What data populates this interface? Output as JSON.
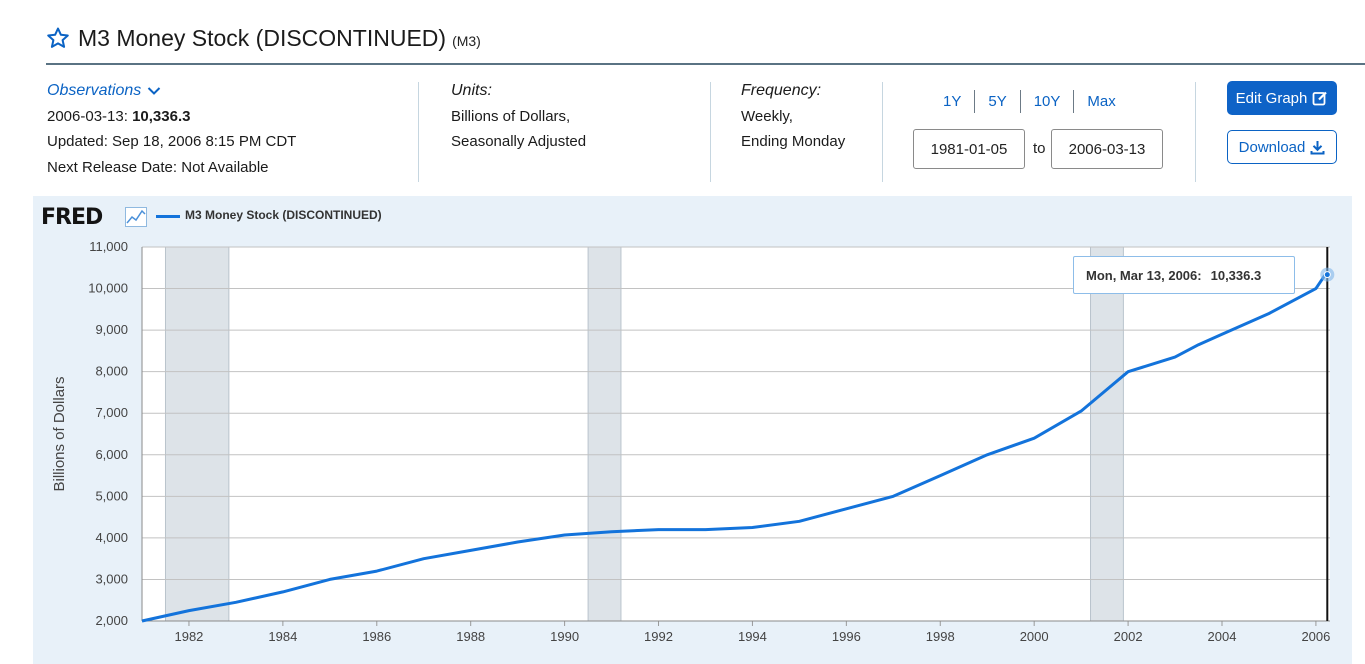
{
  "header": {
    "title": "M3 Money Stock (DISCONTINUED)",
    "series_id": "(M3)"
  },
  "observations": {
    "label": "Observations",
    "date": "2006-03-13:",
    "value": "10,336.3",
    "updated": "Updated: Sep 18, 2006 8:15 PM CDT",
    "next_release": "Next Release Date: Not Available"
  },
  "units": {
    "label": "Units:",
    "line1": "Billions of Dollars,",
    "line2": "Seasonally Adjusted"
  },
  "frequency": {
    "label": "Frequency:",
    "line1": "Weekly,",
    "line2": "Ending Monday"
  },
  "range": {
    "buttons": [
      "1Y",
      "5Y",
      "10Y",
      "Max"
    ],
    "start": "1981-01-05",
    "to_label": "to",
    "end": "2006-03-13"
  },
  "actions": {
    "edit_label": "Edit Graph",
    "download_label": "Download"
  },
  "colors": {
    "accent": "#0e63c7",
    "series": "#1373db",
    "recession": "#dde3e8"
  },
  "chart_data": {
    "type": "line",
    "brand": "FRED",
    "legend": "M3 Money Stock (DISCONTINUED)",
    "title": "M3 Money Stock (DISCONTINUED)",
    "xlabel": "",
    "ylabel": "Billions of Dollars",
    "xlim": [
      1981.0,
      2006.3
    ],
    "ylim": [
      2000,
      11000
    ],
    "y_ticks": [
      2000,
      3000,
      4000,
      5000,
      6000,
      7000,
      8000,
      9000,
      10000,
      11000
    ],
    "y_tick_labels": [
      "2,000",
      "3,000",
      "4,000",
      "5,000",
      "6,000",
      "7,000",
      "8,000",
      "9,000",
      "10,000",
      "11,000"
    ],
    "x_ticks": [
      1982,
      1984,
      1986,
      1988,
      1990,
      1992,
      1994,
      1996,
      1998,
      2000,
      2002,
      2004,
      2006
    ],
    "x_tick_labels": [
      "1982",
      "1984",
      "1986",
      "1988",
      "1990",
      "1992",
      "1994",
      "1996",
      "1998",
      "2000",
      "2002",
      "2004",
      "2006"
    ],
    "recessions": [
      [
        1981.5,
        1982.85
      ],
      [
        1990.5,
        1991.2
      ],
      [
        2001.2,
        2001.9
      ]
    ],
    "series": [
      {
        "name": "M3 Money Stock (DISCONTINUED)",
        "x": [
          1981.0,
          1982.0,
          1983.0,
          1984.0,
          1985.0,
          1986.0,
          1987.0,
          1988.0,
          1989.0,
          1990.0,
          1991.0,
          1992.0,
          1993.0,
          1994.0,
          1995.0,
          1996.0,
          1997.0,
          1998.0,
          1999.0,
          2000.0,
          2001.0,
          2002.0,
          2003.0,
          2003.5,
          2004.0,
          2005.0,
          2006.0,
          2006.2
        ],
        "values": [
          2000,
          2250,
          2450,
          2700,
          3000,
          3200,
          3500,
          3700,
          3900,
          4070,
          4150,
          4200,
          4200,
          4250,
          4400,
          4700,
          5000,
          5500,
          6000,
          6400,
          7050,
          8000,
          8350,
          8650,
          8900,
          9400,
          10000,
          10336.3
        ]
      }
    ],
    "tooltip": {
      "date": "Mon, Mar 13, 2006:",
      "value": "10,336.3"
    }
  }
}
